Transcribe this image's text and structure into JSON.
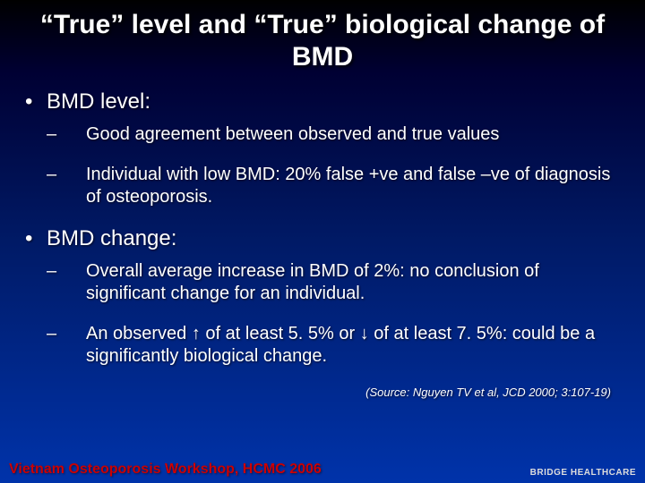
{
  "colors": {
    "bg_top": "#000000",
    "bg_bottom": "#0033aa",
    "text": "#ffffff",
    "footer_accent": "#cc0000"
  },
  "title": "“True” level and “True” biological change of BMD",
  "sections": [
    {
      "heading": "BMD level:",
      "items": [
        "Good agreement between observed and true values",
        "Individual with low BMD: 20% false +ve and false –ve of diagnosis of osteoporosis."
      ]
    },
    {
      "heading": "BMD change:",
      "items": [
        "Overall average increase in BMD of 2%: no conclusion of significant change for an individual.",
        "An observed ↑ of at least 5. 5% or ↓ of at least 7. 5%: could be a significantly biological change."
      ]
    }
  ],
  "source": "(Source: Nguyen TV et al, JCD 2000; 3:107-19)",
  "footer_left": "Vietnam Osteoporosis Workshop, HCMC 2006",
  "footer_right_top": "BRIDGE HEALTHCARE"
}
